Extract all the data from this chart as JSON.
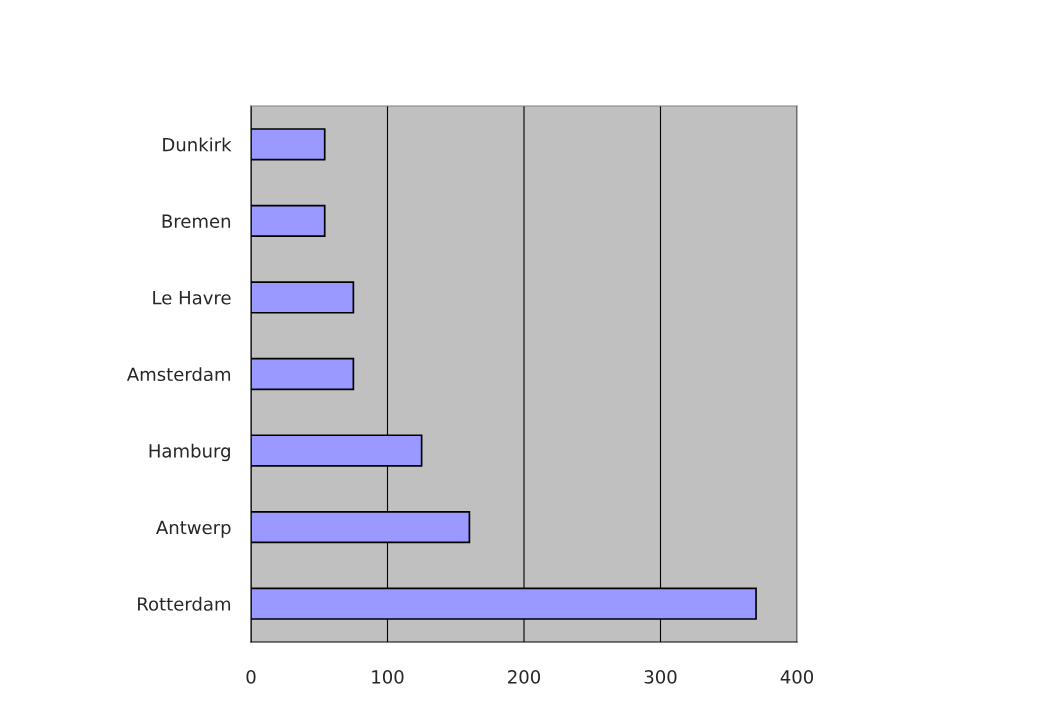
{
  "chart_data": {
    "type": "bar",
    "orientation": "horizontal",
    "categories": [
      "Dunkirk",
      "Bremen",
      "Le Havre",
      "Amsterdam",
      "Hamburg",
      "Antwerp",
      "Rotterdam"
    ],
    "values": [
      54,
      54,
      75,
      75,
      125,
      160,
      370
    ],
    "color": "#9999ff",
    "xlim": [
      0,
      400
    ],
    "xticks": [
      0,
      100,
      200,
      300,
      400
    ],
    "grid": "x"
  }
}
